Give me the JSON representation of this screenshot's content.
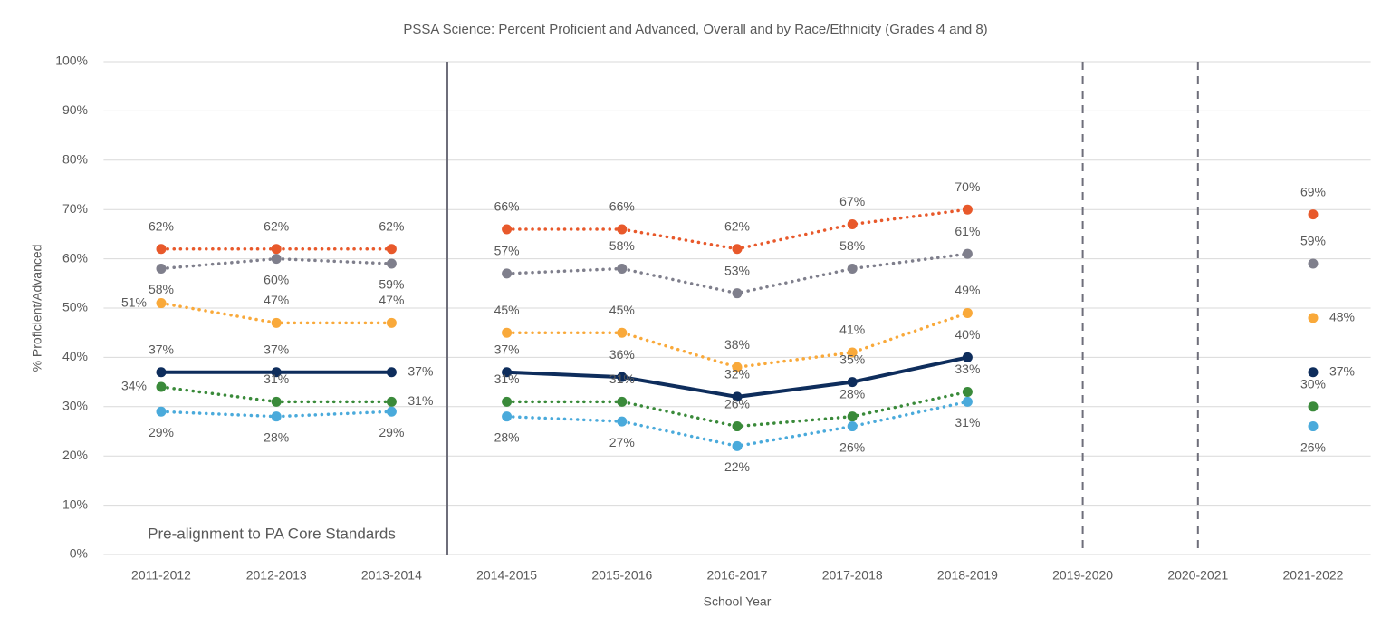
{
  "chart_data": {
    "type": "line",
    "title": "PSSA Science: Percent Proficient and Advanced, Overall and by Race/Ethnicity (Grades 4 and 8)",
    "x_label": "School Year",
    "y_label": "% Proficient/Advanced",
    "annotation": "Pre-alignment to PA Core Standards",
    "categories": [
      "2011-2012",
      "2012-2013",
      "2013-2014",
      "2014-2015",
      "2015-2016",
      "2016-2017",
      "2017-2018",
      "2018-2019",
      "2019-2020",
      "2020-2021",
      "2021-2022"
    ],
    "line_breaks": [
      3
    ],
    "ylim": [
      0,
      100
    ],
    "yticks": [
      {
        "value": 0,
        "label": "0%"
      },
      {
        "value": 10,
        "label": "10%"
      },
      {
        "value": 20,
        "label": "20%"
      },
      {
        "value": 30,
        "label": "30%"
      },
      {
        "value": 40,
        "label": "40%"
      },
      {
        "value": 50,
        "label": "50%"
      },
      {
        "value": 60,
        "label": "60%"
      },
      {
        "value": 70,
        "label": "70%"
      },
      {
        "value": 80,
        "label": "80%"
      },
      {
        "value": 90,
        "label": "90%"
      },
      {
        "value": 100,
        "label": "100%"
      }
    ],
    "grid": true,
    "series": [
      {
        "color": "#e8592b",
        "dash": "dotted",
        "values": [
          62,
          62,
          62,
          66,
          66,
          62,
          67,
          70,
          null,
          null,
          69
        ],
        "value_labels": [
          "62%",
          "62%",
          "62%",
          "66%",
          "66%",
          "62%",
          "67%",
          "70%",
          null,
          null,
          "69%"
        ]
      },
      {
        "color": "#7f7f8c",
        "dash": "dotted",
        "values": [
          58,
          60,
          59,
          57,
          58,
          53,
          58,
          61,
          null,
          null,
          59
        ],
        "value_labels": [
          "58%",
          "60%",
          "59%",
          "57%",
          "58%",
          "53%",
          "58%",
          "61%",
          null,
          null,
          "59%"
        ]
      },
      {
        "color": "#f9a93a",
        "dash": "dotted",
        "values": [
          51,
          47,
          47,
          45,
          45,
          38,
          41,
          49,
          null,
          null,
          48
        ],
        "value_labels": [
          "51%",
          "47%",
          "47%",
          "45%",
          "45%",
          "38%",
          "41%",
          "49%",
          null,
          null,
          "48%"
        ]
      },
      {
        "color": "#0e2d5c",
        "dash": "solid",
        "values": [
          37,
          37,
          37,
          37,
          36,
          32,
          35,
          40,
          null,
          null,
          37
        ],
        "value_labels": [
          "37%",
          "37%",
          "37%",
          "37%",
          "36%",
          "32%",
          "35%",
          "40%",
          null,
          null,
          "37%"
        ]
      },
      {
        "color": "#3a8a3a",
        "dash": "dotted",
        "values": [
          34,
          31,
          31,
          31,
          31,
          26,
          28,
          33,
          null,
          null,
          30
        ],
        "value_labels": [
          "34%",
          "31%",
          "31%",
          "31%",
          "31%",
          "26%",
          "28%",
          "33%",
          null,
          null,
          "30%"
        ]
      },
      {
        "color": "#4aaadb",
        "dash": "dotted",
        "values": [
          29,
          28,
          29,
          28,
          27,
          22,
          26,
          31,
          null,
          null,
          26
        ],
        "value_labels": [
          "29%",
          "28%",
          "29%",
          "28%",
          "27%",
          "22%",
          "26%",
          "31%",
          null,
          null,
          "26%"
        ]
      }
    ]
  }
}
